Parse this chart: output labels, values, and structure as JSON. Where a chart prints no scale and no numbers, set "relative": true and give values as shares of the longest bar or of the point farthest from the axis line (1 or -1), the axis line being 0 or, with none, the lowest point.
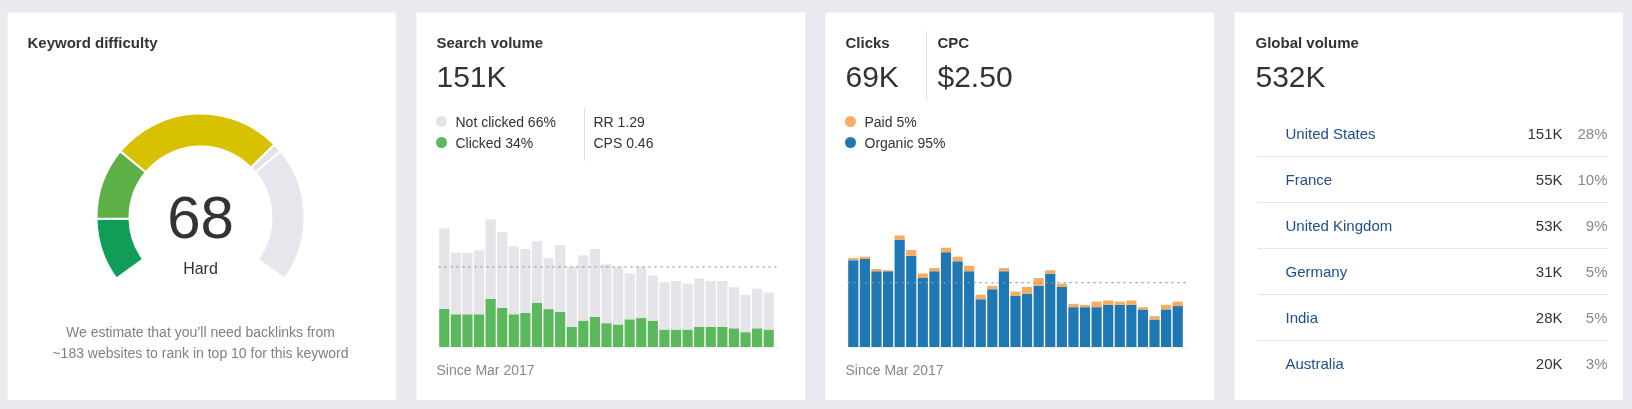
{
  "chart_data": [
    {
      "type": "donut",
      "title": "Keyword difficulty",
      "categories": [
        null,
        null,
        null,
        null,
        null
      ],
      "values": [
        14,
        16,
        38,
        2,
        30
      ],
      "colors": [
        "#0f9d58",
        "#5cb045",
        "#d8c100",
        "#e2e2e8",
        "#e6e6ec"
      ],
      "annotations": [
        "68",
        "Hard",
        "We estimate that you’ll need backlinks from\n~183 websites to rank in top 10 for this keyword"
      ]
    },
    {
      "type": "bar",
      "stacked": true,
      "relative": true,
      "title": "Search volume",
      "subtitle": "151K",
      "xlabel": "Since Mar 2017",
      "legend": "top left",
      "categories": [
        null,
        null,
        null,
        null,
        null,
        null,
        null,
        null,
        null,
        null,
        null,
        null,
        null,
        null,
        null,
        null,
        null,
        null,
        null,
        null,
        null,
        null,
        null,
        null,
        null,
        null,
        null,
        null,
        null
      ],
      "series": [
        {
          "name": "Clicked 34%",
          "color": "#5cb85c",
          "values": [
            0.3,
            0.26,
            0.26,
            0.26,
            0.38,
            0.31,
            0.26,
            0.27,
            0.35,
            0.3,
            0.28,
            0.16,
            0.21,
            0.24,
            0.19,
            0.18,
            0.22,
            0.23,
            0.21,
            0.14,
            0.14,
            0.14,
            0.16,
            0.16,
            0.16,
            0.15,
            0.12,
            0.15,
            0.14
          ]
        },
        {
          "name": "Not clicked 66%",
          "color": "#e4e4e9",
          "values": [
            0.63,
            0.48,
            0.48,
            0.5,
            0.62,
            0.59,
            0.53,
            0.5,
            0.48,
            0.4,
            0.52,
            0.47,
            0.51,
            0.53,
            0.46,
            0.45,
            0.36,
            0.4,
            0.35,
            0.37,
            0.38,
            0.36,
            0.38,
            0.36,
            0.36,
            0.32,
            0.29,
            0.31,
            0.29
          ]
        }
      ],
      "ref_lines": [
        {
          "axis": "y",
          "value": 0.63,
          "color": "#999999",
          "line_style": "dotted"
        }
      ],
      "annotations": [
        "RR 1.29",
        "CPS 0.46"
      ]
    },
    {
      "type": "bar",
      "stacked": true,
      "relative": true,
      "title": "Clicks",
      "subtitle": "69K",
      "xlabel": "Since Mar 2017",
      "legend": "top left",
      "categories": [
        null,
        null,
        null,
        null,
        null,
        null,
        null,
        null,
        null,
        null,
        null,
        null,
        null,
        null,
        null,
        null,
        null,
        null,
        null,
        null,
        null,
        null,
        null,
        null,
        null,
        null,
        null,
        null,
        null
      ],
      "series": [
        {
          "name": "Organic 95%",
          "color": "#1f77b4",
          "values": [
            0.78,
            0.79,
            0.68,
            0.68,
            0.96,
            0.82,
            0.62,
            0.68,
            0.85,
            0.77,
            0.68,
            0.43,
            0.52,
            0.68,
            0.46,
            0.48,
            0.55,
            0.66,
            0.54,
            0.36,
            0.36,
            0.36,
            0.38,
            0.38,
            0.38,
            0.34,
            0.25,
            0.34,
            0.37
          ]
        },
        {
          "name": "Paid 5%",
          "color": "#f5ad63",
          "values": [
            0.02,
            0.02,
            0.02,
            0.01,
            0.04,
            0.05,
            0.04,
            0.03,
            0.04,
            0.04,
            0.05,
            0.04,
            0.03,
            0.03,
            0.04,
            0.06,
            0.07,
            0.03,
            0.03,
            0.03,
            0.02,
            0.05,
            0.04,
            0.03,
            0.04,
            0.02,
            0.03,
            0.04,
            0.04
          ]
        }
      ],
      "ref_lines": [
        {
          "axis": "y",
          "value": 0.58,
          "color": "#999999",
          "line_style": "dotted"
        }
      ],
      "annotations": [
        "CPC",
        "$2.50"
      ]
    },
    {
      "type": "other",
      "title": "Global volume",
      "subtitle": "532K",
      "categories": [
        "United States",
        "France",
        "United Kingdom",
        "Germany",
        "India",
        "Australia"
      ],
      "series": [
        {
          "values": [
            151,
            55,
            53,
            31,
            28,
            20
          ],
          "value_labels": [
            "151K",
            "55K",
            "53K",
            "31K",
            "28K",
            "20K"
          ]
        },
        {
          "values": [
            28,
            10,
            9,
            5,
            5,
            3
          ],
          "value_labels": [
            "28%",
            "10%",
            "9%",
            "5%",
            "5%",
            "3%"
          ]
        }
      ]
    }
  ]
}
